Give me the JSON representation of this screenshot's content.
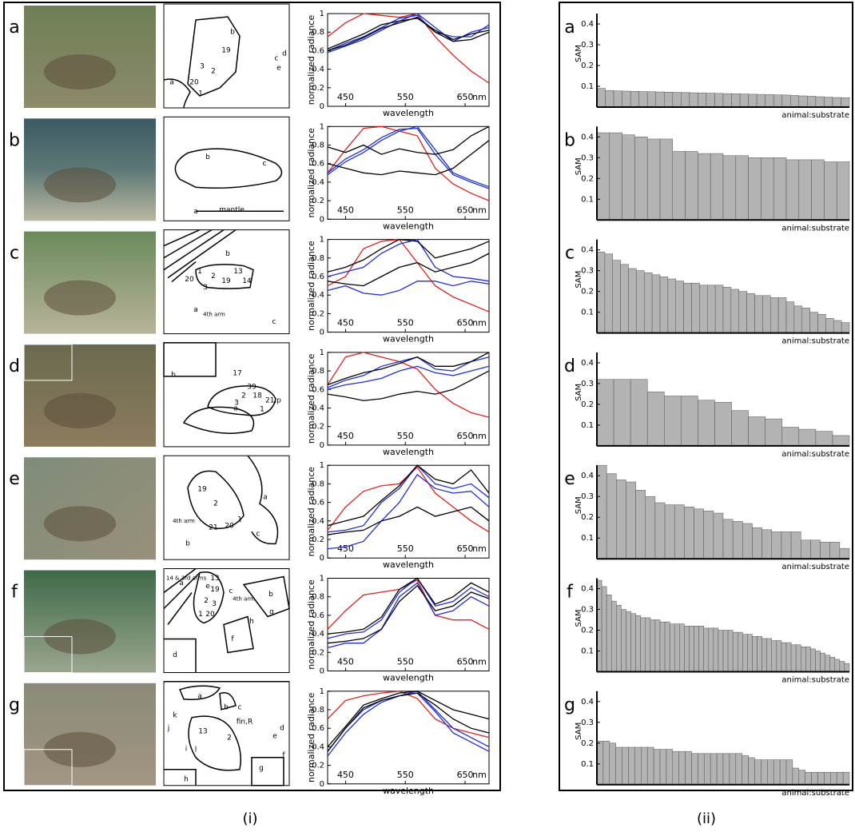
{
  "figure": {
    "labels": [
      "(i)",
      "(ii)"
    ]
  },
  "spectra": {
    "ylabel": "normalized radiance",
    "xlabel": "wavelength",
    "unit": "nm",
    "x": [
      420,
      450,
      480,
      510,
      540,
      570,
      600,
      630,
      660,
      690
    ],
    "xlim": [
      420,
      690
    ],
    "ylim": [
      0,
      1
    ],
    "xticks": [
      450,
      550,
      650
    ],
    "yticks": [
      0,
      0.2,
      0.4,
      0.6,
      0.8,
      1
    ]
  },
  "sam": {
    "ylabel": "SAM",
    "xlabel": "animal:substrate",
    "color": "#b3b3b3",
    "ylim": [
      0,
      0.45
    ],
    "yticks": [
      0.1,
      0.2,
      0.3,
      0.4
    ]
  },
  "rows": [
    {
      "letter": "a",
      "sketch_labels": [
        "b",
        "19",
        "3",
        "2",
        "20",
        "1",
        "a",
        "c",
        "d",
        "e"
      ],
      "spectrum": [
        {
          "color": "#e0201c",
          "values": [
            0.75,
            0.9,
            1.0,
            0.98,
            0.96,
            1.0,
            0.75,
            0.55,
            0.38,
            0.25
          ]
        },
        {
          "color": "#1f2fd6",
          "values": [
            0.6,
            0.68,
            0.75,
            0.85,
            0.95,
            0.98,
            0.8,
            0.75,
            0.75,
            0.88
          ]
        },
        {
          "color": "#1f2fd6",
          "values": [
            0.58,
            0.65,
            0.72,
            0.82,
            0.92,
            1.0,
            0.85,
            0.7,
            0.8,
            0.85
          ]
        },
        {
          "color": "#000000",
          "values": [
            0.62,
            0.7,
            0.78,
            0.88,
            0.92,
            0.95,
            0.82,
            0.72,
            0.78,
            0.82
          ]
        },
        {
          "color": "#000000",
          "values": [
            0.6,
            0.66,
            0.74,
            0.84,
            0.9,
            0.96,
            0.8,
            0.7,
            0.72,
            0.8
          ]
        }
      ],
      "sam_values": [
        0.09,
        0.08,
        0.078,
        0.077,
        0.076,
        0.075,
        0.074,
        0.073,
        0.072,
        0.071,
        0.07,
        0.069,
        0.068,
        0.067,
        0.066,
        0.065,
        0.064,
        0.063,
        0.062,
        0.061,
        0.06,
        0.059,
        0.058,
        0.056,
        0.054,
        0.052,
        0.05,
        0.048,
        0.046,
        0.045
      ]
    },
    {
      "letter": "b",
      "sketch_labels": [
        "b",
        "c",
        "a",
        "mantle"
      ],
      "spectrum": [
        {
          "color": "#e0201c",
          "values": [
            0.5,
            0.75,
            0.98,
            1.0,
            0.95,
            0.9,
            0.55,
            0.38,
            0.28,
            0.2
          ]
        },
        {
          "color": "#1f2fd6",
          "values": [
            0.48,
            0.62,
            0.72,
            0.85,
            0.95,
            1.0,
            0.75,
            0.5,
            0.42,
            0.35
          ]
        },
        {
          "color": "#1f2fd6",
          "values": [
            0.5,
            0.65,
            0.75,
            0.88,
            0.97,
            0.98,
            0.7,
            0.48,
            0.4,
            0.33
          ]
        },
        {
          "color": "#000000",
          "values": [
            0.78,
            0.72,
            0.8,
            0.7,
            0.76,
            0.72,
            0.7,
            0.75,
            0.9,
            1.0
          ]
        },
        {
          "color": "#000000",
          "values": [
            0.6,
            0.55,
            0.5,
            0.48,
            0.52,
            0.5,
            0.48,
            0.55,
            0.7,
            0.85
          ]
        }
      ],
      "sam_values": [
        0.42,
        0.42,
        0.41,
        0.4,
        0.39,
        0.39,
        0.33,
        0.33,
        0.32,
        0.32,
        0.31,
        0.31,
        0.3,
        0.3,
        0.3,
        0.29,
        0.29,
        0.29,
        0.28,
        0.28
      ]
    },
    {
      "letter": "c",
      "sketch_labels": [
        "1",
        "2",
        "13",
        "19",
        "14",
        "3",
        "20",
        "4th arm",
        "a",
        "c",
        "b"
      ],
      "spectrum": [
        {
          "color": "#e0201c",
          "values": [
            0.5,
            0.6,
            0.9,
            0.98,
            1.0,
            0.75,
            0.5,
            0.38,
            0.3,
            0.22
          ]
        },
        {
          "color": "#1f2fd6",
          "values": [
            0.6,
            0.65,
            0.7,
            0.85,
            0.95,
            1.0,
            0.7,
            0.6,
            0.58,
            0.55
          ]
        },
        {
          "color": "#1f2fd6",
          "values": [
            0.45,
            0.5,
            0.42,
            0.4,
            0.45,
            0.55,
            0.55,
            0.5,
            0.55,
            0.52
          ]
        },
        {
          "color": "#000000",
          "values": [
            0.65,
            0.7,
            0.78,
            0.9,
            1.0,
            0.98,
            0.8,
            0.85,
            0.9,
            0.98
          ]
        },
        {
          "color": "#000000",
          "values": [
            0.55,
            0.52,
            0.5,
            0.6,
            0.7,
            0.75,
            0.65,
            0.7,
            0.75,
            0.85
          ]
        }
      ],
      "sam_values": [
        0.39,
        0.38,
        0.35,
        0.33,
        0.31,
        0.3,
        0.29,
        0.28,
        0.27,
        0.26,
        0.25,
        0.24,
        0.24,
        0.23,
        0.23,
        0.23,
        0.22,
        0.21,
        0.2,
        0.19,
        0.18,
        0.18,
        0.17,
        0.17,
        0.15,
        0.13,
        0.12,
        0.1,
        0.09,
        0.07,
        0.06,
        0.05
      ]
    },
    {
      "letter": "d",
      "sketch_labels": [
        "b",
        "17",
        "39",
        "2",
        "18",
        "3",
        "1",
        "21,p",
        "a"
      ],
      "spectrum": [
        {
          "color": "#e0201c",
          "values": [
            0.65,
            0.95,
            1.0,
            0.95,
            0.9,
            0.82,
            0.6,
            0.45,
            0.35,
            0.3
          ]
        },
        {
          "color": "#1f2fd6",
          "values": [
            0.62,
            0.7,
            0.75,
            0.85,
            0.9,
            0.95,
            0.82,
            0.8,
            0.9,
            0.95
          ]
        },
        {
          "color": "#1f2fd6",
          "values": [
            0.6,
            0.65,
            0.68,
            0.72,
            0.8,
            0.85,
            0.78,
            0.75,
            0.8,
            0.85
          ]
        },
        {
          "color": "#000000",
          "values": [
            0.65,
            0.72,
            0.78,
            0.82,
            0.88,
            0.95,
            0.85,
            0.85,
            0.9,
            1.0
          ]
        },
        {
          "color": "#000000",
          "values": [
            0.55,
            0.52,
            0.48,
            0.5,
            0.55,
            0.58,
            0.55,
            0.6,
            0.7,
            0.8
          ]
        }
      ],
      "sam_values": [
        0.32,
        0.32,
        0.32,
        0.26,
        0.24,
        0.24,
        0.22,
        0.21,
        0.17,
        0.14,
        0.13,
        0.09,
        0.08,
        0.07,
        0.05
      ]
    },
    {
      "letter": "e",
      "sketch_labels": [
        "19",
        "2",
        "1",
        "21",
        "20",
        "4th arm",
        "a",
        "c",
        "b"
      ],
      "spectrum": [
        {
          "color": "#e0201c",
          "values": [
            0.3,
            0.55,
            0.72,
            0.78,
            0.8,
            0.98,
            0.7,
            0.55,
            0.4,
            0.28
          ]
        },
        {
          "color": "#1f2fd6",
          "values": [
            0.28,
            0.3,
            0.35,
            0.6,
            0.75,
            1.0,
            0.8,
            0.75,
            0.8,
            0.65
          ]
        },
        {
          "color": "#1f2fd6",
          "values": [
            0.1,
            0.12,
            0.18,
            0.4,
            0.6,
            0.9,
            0.75,
            0.7,
            0.72,
            0.55
          ]
        },
        {
          "color": "#000000",
          "values": [
            0.35,
            0.4,
            0.45,
            0.62,
            0.78,
            1.0,
            0.85,
            0.8,
            0.95,
            0.7
          ]
        },
        {
          "color": "#000000",
          "values": [
            0.25,
            0.28,
            0.3,
            0.4,
            0.45,
            0.55,
            0.45,
            0.5,
            0.55,
            0.4
          ]
        }
      ],
      "sam_values": [
        0.45,
        0.41,
        0.38,
        0.37,
        0.33,
        0.3,
        0.27,
        0.26,
        0.26,
        0.25,
        0.24,
        0.23,
        0.22,
        0.19,
        0.18,
        0.17,
        0.15,
        0.14,
        0.13,
        0.13,
        0.13,
        0.09,
        0.09,
        0.08,
        0.08,
        0.05
      ]
    },
    {
      "letter": "f",
      "sketch_labels": [
        "14 & 3rd arms",
        "13",
        "e",
        "19",
        "2",
        "3",
        "1",
        "20",
        "c",
        "4th arm",
        "a",
        "b",
        "g",
        "h",
        "f",
        "d"
      ],
      "spectrum": [
        {
          "color": "#e0201c",
          "values": [
            0.45,
            0.65,
            0.82,
            0.85,
            0.88,
            0.98,
            0.6,
            0.55,
            0.55,
            0.45
          ]
        },
        {
          "color": "#1f2fd6",
          "values": [
            0.35,
            0.4,
            0.42,
            0.55,
            0.85,
            1.0,
            0.7,
            0.75,
            0.9,
            0.8
          ]
        },
        {
          "color": "#1f2fd6",
          "values": [
            0.25,
            0.3,
            0.3,
            0.45,
            0.8,
            0.95,
            0.6,
            0.65,
            0.8,
            0.7
          ]
        },
        {
          "color": "#000000",
          "values": [
            0.4,
            0.42,
            0.45,
            0.58,
            0.88,
            1.0,
            0.72,
            0.8,
            0.95,
            0.85
          ]
        },
        {
          "color": "#000000",
          "values": [
            0.3,
            0.32,
            0.35,
            0.45,
            0.75,
            0.92,
            0.65,
            0.7,
            0.85,
            0.78
          ]
        }
      ],
      "sam_values": [
        0.44,
        0.41,
        0.37,
        0.34,
        0.32,
        0.3,
        0.29,
        0.28,
        0.27,
        0.26,
        0.26,
        0.25,
        0.25,
        0.24,
        0.24,
        0.23,
        0.23,
        0.23,
        0.22,
        0.22,
        0.22,
        0.22,
        0.21,
        0.21,
        0.21,
        0.2,
        0.2,
        0.2,
        0.19,
        0.19,
        0.18,
        0.18,
        0.17,
        0.17,
        0.16,
        0.16,
        0.15,
        0.15,
        0.14,
        0.14,
        0.13,
        0.13,
        0.12,
        0.12,
        0.11,
        0.1,
        0.09,
        0.08,
        0.07,
        0.06,
        0.05,
        0.04
      ]
    },
    {
      "letter": "g",
      "sketch_labels": [
        "a",
        "b",
        "c",
        "d",
        "k",
        "j",
        "13",
        "2",
        "fin,R",
        "e",
        "i",
        "l",
        "f",
        "g",
        "h"
      ],
      "spectrum": [
        {
          "color": "#e0201c",
          "values": [
            0.7,
            0.9,
            0.95,
            0.98,
            1.0,
            0.92,
            0.7,
            0.6,
            0.55,
            0.5
          ]
        },
        {
          "color": "#1f2fd6",
          "values": [
            0.35,
            0.6,
            0.8,
            0.9,
            0.95,
            1.0,
            0.8,
            0.6,
            0.5,
            0.4
          ]
        },
        {
          "color": "#1f2fd6",
          "values": [
            0.3,
            0.55,
            0.75,
            0.88,
            0.95,
            0.98,
            0.78,
            0.55,
            0.45,
            0.35
          ]
        },
        {
          "color": "#000000",
          "values": [
            0.4,
            0.62,
            0.85,
            0.92,
            0.98,
            1.0,
            0.9,
            0.8,
            0.75,
            0.7
          ]
        },
        {
          "color": "#000000",
          "values": [
            0.35,
            0.6,
            0.82,
            0.9,
            0.95,
            0.98,
            0.85,
            0.7,
            0.6,
            0.55
          ]
        }
      ],
      "sam_values": [
        0.21,
        0.21,
        0.2,
        0.18,
        0.18,
        0.18,
        0.18,
        0.18,
        0.18,
        0.17,
        0.17,
        0.17,
        0.16,
        0.16,
        0.16,
        0.15,
        0.15,
        0.15,
        0.15,
        0.15,
        0.15,
        0.15,
        0.15,
        0.14,
        0.13,
        0.12,
        0.12,
        0.12,
        0.12,
        0.12,
        0.12,
        0.08,
        0.07,
        0.06,
        0.06,
        0.06,
        0.06,
        0.06,
        0.06,
        0.06
      ]
    }
  ]
}
